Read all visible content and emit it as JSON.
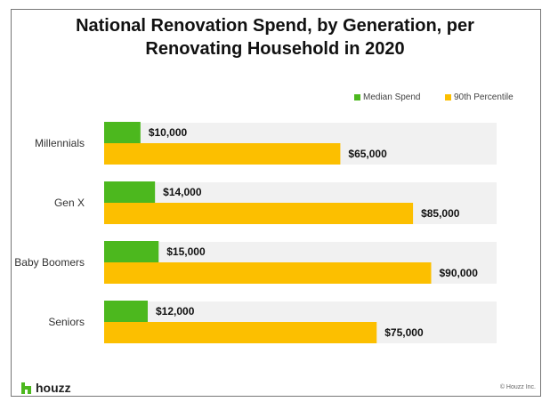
{
  "chart_data": {
    "type": "bar",
    "orientation": "horizontal",
    "title_lines": [
      "National Renovation Spend, by Generation, per",
      "Renovating Household in 2020"
    ],
    "categories": [
      "Millennials",
      "Gen X",
      "Baby Boomers",
      "Seniors"
    ],
    "series": [
      {
        "name": "Median Spend",
        "values": [
          10000,
          14000,
          15000,
          12000
        ],
        "labels": [
          "$10,000",
          "$14,000",
          "$15,000",
          "$12,000"
        ],
        "color": "#4cb81e"
      },
      {
        "name": "90th Percentile",
        "values": [
          65000,
          85000,
          90000,
          75000
        ],
        "labels": [
          "$65,000",
          "$85,000",
          "$90,000",
          "$75,000"
        ],
        "color": "#fcbf00"
      }
    ],
    "xlim": [
      0,
      108000
    ],
    "grid": false,
    "legend_position": "top-right",
    "background_band_color": "#f1f1f1"
  },
  "footer": {
    "logo": "houzz",
    "copyright": "© Houzz Inc."
  },
  "colors": {
    "brand": "#4cb81e"
  }
}
